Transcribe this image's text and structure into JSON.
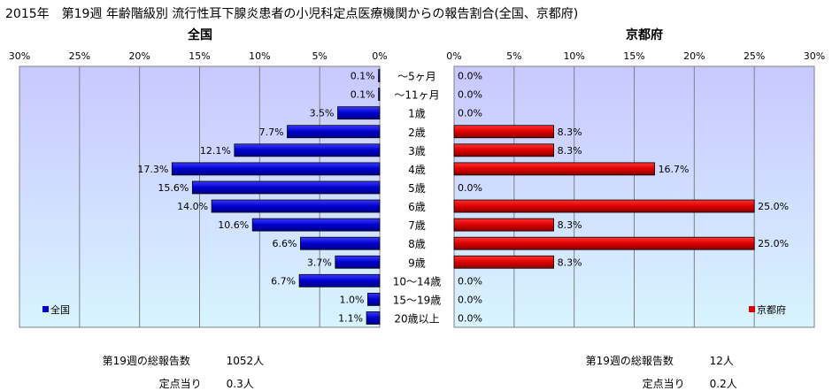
{
  "title": "2015年　第19週 年齢階級別 流行性耳下腺炎患者の小児科定点医療機関からの報告割合(全国、京都府)",
  "chart_data": [
    {
      "type": "bar",
      "orientation": "horizontal",
      "direction": "right-to-left",
      "title": "全国",
      "categories": [
        "～5ヶ月",
        "～11ヶ月",
        "1歳",
        "2歳",
        "3歳",
        "4歳",
        "5歳",
        "6歳",
        "7歳",
        "8歳",
        "9歳",
        "10～14歳",
        "15～19歳",
        "20歳以上"
      ],
      "series": [
        {
          "name": "全国",
          "values": [
            0.1,
            0.1,
            3.5,
            7.7,
            12.1,
            17.3,
            15.6,
            14.0,
            10.6,
            6.6,
            3.7,
            6.7,
            1.0,
            1.1
          ]
        }
      ],
      "value_labels": [
        "0.1%",
        "0.1%",
        "3.5%",
        "7.7%",
        "12.1%",
        "17.3%",
        "15.6%",
        "14.0%",
        "10.6%",
        "6.6%",
        "3.7%",
        "6.7%",
        "1.0%",
        "1.1%"
      ],
      "xlim": [
        0,
        30
      ],
      "xticks": [
        "0%",
        "5%",
        "10%",
        "15%",
        "20%",
        "25%",
        "30%"
      ],
      "grid": true,
      "legend": "bottom-left",
      "bar_color": "#0000cc",
      "plot_gradient": [
        "#c8c8ff",
        "#d8f4ff"
      ]
    },
    {
      "type": "bar",
      "orientation": "horizontal",
      "direction": "left-to-right",
      "title": "京都府",
      "categories": [
        "～5ヶ月",
        "～11ヶ月",
        "1歳",
        "2歳",
        "3歳",
        "4歳",
        "5歳",
        "6歳",
        "7歳",
        "8歳",
        "9歳",
        "10～14歳",
        "15～19歳",
        "20歳以上"
      ],
      "series": [
        {
          "name": "京都府",
          "values": [
            0.0,
            0.0,
            0.0,
            8.3,
            8.3,
            16.7,
            0.0,
            25.0,
            8.3,
            25.0,
            8.3,
            0.0,
            0.0,
            0.0
          ]
        }
      ],
      "value_labels": [
        "0.0%",
        "0.0%",
        "0.0%",
        "8.3%",
        "8.3%",
        "16.7%",
        "0.0%",
        "25.0%",
        "8.3%",
        "25.0%",
        "8.3%",
        "0.0%",
        "0.0%",
        "0.0%"
      ],
      "xlim": [
        0,
        30
      ],
      "xticks": [
        "0%",
        "5%",
        "10%",
        "15%",
        "20%",
        "25%",
        "30%"
      ],
      "grid": true,
      "legend": "bottom-right",
      "bar_color": "#dd0000",
      "plot_gradient": [
        "#c8c8ff",
        "#d8f4ff"
      ]
    }
  ],
  "footer": {
    "national": {
      "total_label": "第19週の総報告数",
      "total_value": "1052人",
      "per_label": "定点当り",
      "per_value": "0.3人"
    },
    "kyoto": {
      "total_label": "第19週の総報告数",
      "total_value": "12人",
      "per_label": "定点当り",
      "per_value": "0.2人"
    }
  }
}
